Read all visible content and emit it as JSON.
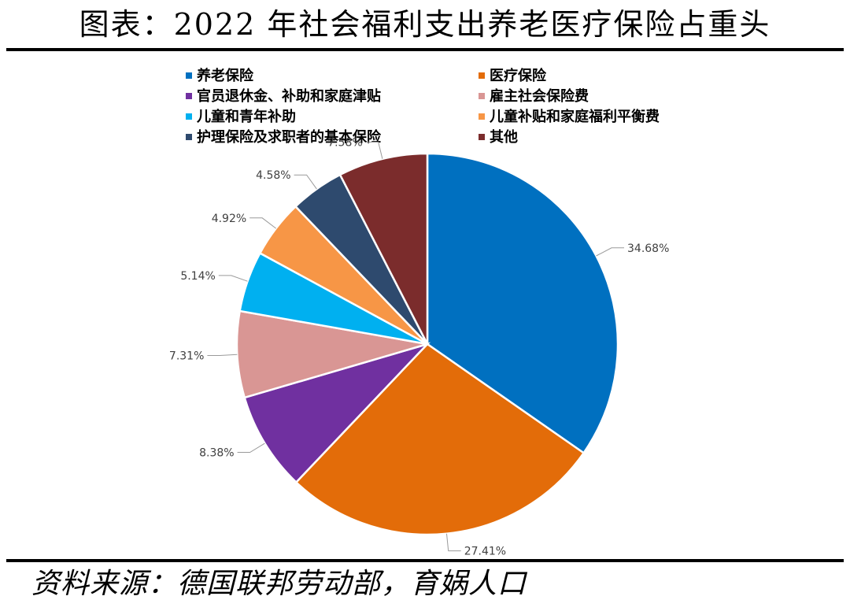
{
  "header": {
    "title": "图表：2022 年社会福利支出养老医疗保险占重头"
  },
  "footer": {
    "source": "资料来源：德国联邦劳动部，育娲人口"
  },
  "chart_data": {
    "type": "pie",
    "title": "图表：2022 年社会福利支出养老医疗保险占重头",
    "legend_position": "top",
    "slices": [
      {
        "name": "养老保险",
        "value": 34.68,
        "label": "34.68%",
        "color": "#0070C0"
      },
      {
        "name": "医疗保险",
        "value": 27.41,
        "label": "27.41%",
        "color": "#E36C09"
      },
      {
        "name": "官员退休金、补助和家庭津贴",
        "value": 8.38,
        "label": "8.38%",
        "color": "#7030A0"
      },
      {
        "name": "雇主社会保险费",
        "value": 7.31,
        "label": "7.31%",
        "color": "#D99694"
      },
      {
        "name": "儿童和青年补助",
        "value": 5.14,
        "label": "5.14%",
        "color": "#00B0F0"
      },
      {
        "name": "儿童补贴和家庭福利平衡费",
        "value": 4.92,
        "label": "4.92%",
        "color": "#F79646"
      },
      {
        "name": "护理保险及求职者的基本保险",
        "value": 4.58,
        "label": "4.58%",
        "color": "#2E4A6E"
      },
      {
        "name": "其他",
        "value": 7.58,
        "label": "7.58%",
        "color": "#7B2C2C"
      }
    ]
  }
}
